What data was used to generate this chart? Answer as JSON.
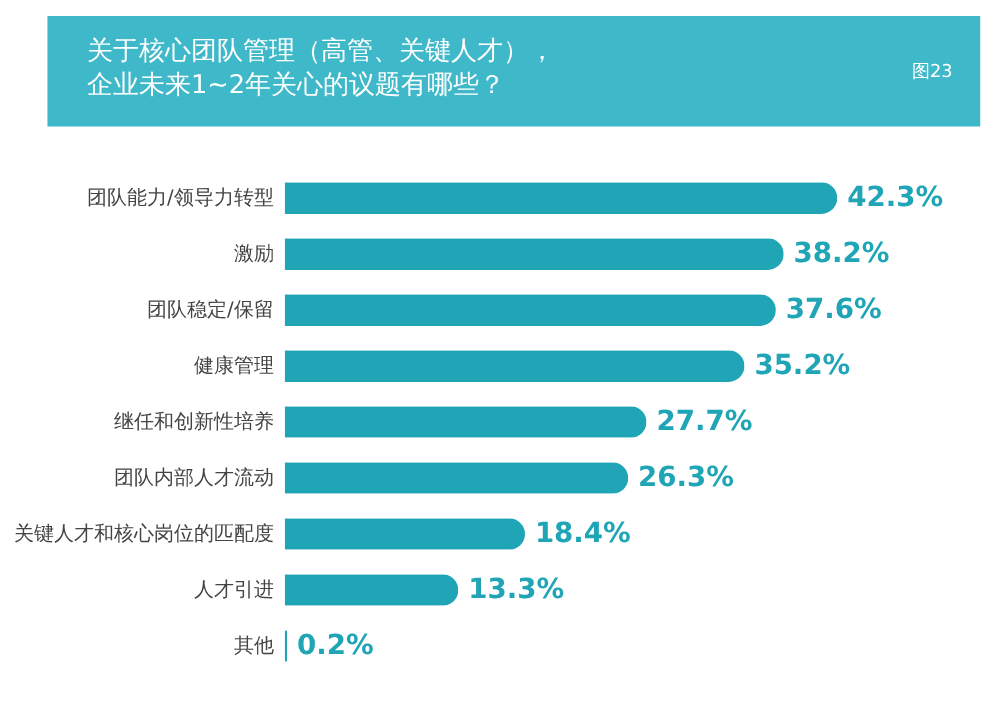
{
  "chart_data": {
    "type": "bar",
    "orientation": "horizontal",
    "title": "关于核心团队管理（高管、关键人才），企业未来1~2年关心的议题有哪些？",
    "annotations": [
      "图23"
    ],
    "categories": [
      "团队能力/领导力转型",
      "激励",
      "团队稳定/保留",
      "健康管理",
      "继任和创新性培养",
      "团队内部人才流动",
      "关键人才和核心岗位的匹配度",
      "人才引进",
      "其他"
    ],
    "values": [
      42.3,
      38.2,
      37.6,
      35.2,
      27.7,
      26.3,
      18.4,
      13.3,
      0.2
    ],
    "value_labels": [
      "42.3%",
      "38.2%",
      "37.6%",
      "35.2%",
      "27.7%",
      "26.3%",
      "18.4%",
      "13.3%",
      "0.2%"
    ],
    "color": "#1fa5b5"
  }
}
